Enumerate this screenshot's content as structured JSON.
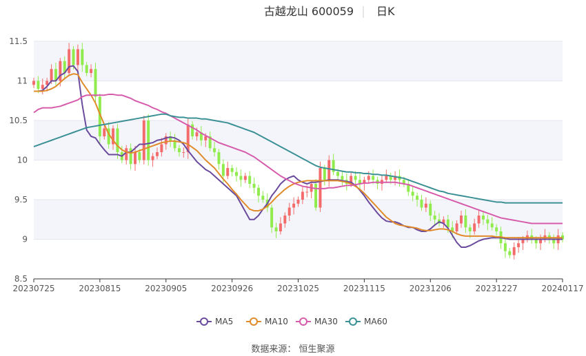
{
  "title": {
    "name": "古越龙山 600059",
    "period": "日K"
  },
  "source": "数据来源： 恒生聚源",
  "colors": {
    "up": "#f36b6b",
    "down": "#8fec4c",
    "grid": "#e3e6ef",
    "band": "#f4f5fa",
    "axis": "#555555"
  },
  "chart_data": {
    "type": "candlestick",
    "title": "古越龙山 600059",
    "ylim": [
      8.5,
      11.5
    ],
    "yticks": [
      "8.5",
      "9",
      "9.5",
      "10",
      "10.5",
      "11",
      "11.5"
    ],
    "xticks": [
      {
        "label": "20230725",
        "index": 0
      },
      {
        "label": "20230815",
        "index": 15
      },
      {
        "label": "20230905",
        "index": 30
      },
      {
        "label": "20230926",
        "index": 45
      },
      {
        "label": "20231025",
        "index": 60
      },
      {
        "label": "20231115",
        "index": 75
      },
      {
        "label": "20231206",
        "index": 90
      },
      {
        "label": "20231227",
        "index": 105
      },
      {
        "label": "20240117",
        "index": 120
      }
    ],
    "close": [
      11.0,
      10.9,
      10.95,
      11.0,
      11.15,
      11.0,
      11.25,
      11.1,
      11.4,
      11.2,
      11.4,
      11.2,
      11.1,
      11.15,
      10.8,
      10.3,
      10.4,
      10.2,
      10.4,
      10.1,
      10.0,
      10.15,
      9.95,
      10.1,
      10.0,
      10.5,
      10.0,
      10.05,
      10.1,
      10.2,
      10.3,
      10.25,
      10.15,
      10.1,
      10.1,
      10.45,
      10.3,
      10.35,
      10.25,
      10.3,
      10.15,
      10.1,
      9.95,
      9.8,
      9.9,
      9.85,
      9.8,
      9.75,
      9.8,
      9.7,
      9.65,
      9.55,
      9.5,
      9.4,
      9.15,
      9.1,
      9.2,
      9.3,
      9.4,
      9.45,
      9.5,
      9.6,
      9.6,
      9.7,
      9.4,
      9.9,
      9.75,
      10.0,
      9.85,
      9.8,
      9.75,
      9.7,
      9.8,
      9.75,
      9.7,
      9.75,
      9.8,
      9.75,
      9.7,
      9.75,
      9.8,
      9.75,
      9.8,
      9.75,
      9.7,
      9.6,
      9.55,
      9.5,
      9.4,
      9.45,
      9.3,
      9.25,
      9.2,
      9.25,
      9.15,
      9.1,
      9.2,
      9.3,
      9.15,
      9.1,
      9.2,
      9.3,
      9.25,
      9.2,
      9.15,
      9.1,
      8.95,
      8.85,
      8.8,
      8.9,
      8.95,
      9.0,
      9.05,
      9.0,
      8.95,
      9.0,
      9.05,
      9.0,
      8.95,
      9.05,
      9.0
    ],
    "series": [
      {
        "name": "MA5",
        "color": "#6a4a9c",
        "values": [
          10.87,
          10.87,
          10.88,
          10.93,
          11.0,
          11.0,
          11.07,
          11.1,
          11.18,
          11.19,
          11.12,
          10.7,
          10.38,
          10.3,
          10.28,
          10.2,
          10.13,
          10.07,
          10.07,
          10.07,
          10.05,
          10.1,
          10.1,
          10.15,
          10.2,
          10.2,
          10.21,
          10.22,
          10.25,
          10.26,
          10.28,
          10.29,
          10.28,
          10.25,
          10.2,
          10.12,
          10.05,
          9.98,
          9.93,
          9.88,
          9.85,
          9.8,
          9.75,
          9.7,
          9.65,
          9.6,
          9.55,
          9.45,
          9.35,
          9.25,
          9.25,
          9.3,
          9.38,
          9.45,
          9.55,
          9.62,
          9.7,
          9.75,
          9.78,
          9.8,
          9.75,
          9.72,
          9.7,
          9.72,
          9.72,
          9.73,
          9.74,
          9.75,
          9.75,
          9.75,
          9.74,
          9.73,
          9.72,
          9.68,
          9.62,
          9.55,
          9.47,
          9.4,
          9.33,
          9.27,
          9.23,
          9.22,
          9.22,
          9.2,
          9.17,
          9.15,
          9.15,
          9.12,
          9.1,
          9.1,
          9.13,
          9.18,
          9.22,
          9.2,
          9.14,
          9.05,
          8.96,
          8.9,
          8.9,
          8.92,
          8.95,
          8.98,
          9.0,
          9.01,
          9.02,
          9.02,
          9.02,
          9.01,
          9.0,
          9.0,
          9.0,
          9.0,
          9.0,
          9.0,
          9.0,
          9.0,
          9.0,
          9.0,
          9.0,
          9.0,
          9.0
        ]
      },
      {
        "name": "MA10",
        "color": "#e08a2a",
        "values": [
          10.87,
          10.87,
          10.87,
          10.88,
          10.9,
          10.93,
          10.98,
          11.03,
          11.07,
          11.09,
          11.08,
          10.98,
          10.9,
          10.82,
          10.72,
          10.58,
          10.45,
          10.33,
          10.25,
          10.18,
          10.13,
          10.1,
          10.09,
          10.1,
          10.12,
          10.14,
          10.16,
          10.18,
          10.2,
          10.22,
          10.23,
          10.24,
          10.24,
          10.23,
          10.22,
          10.2,
          10.16,
          10.12,
          10.06,
          10.0,
          9.95,
          9.9,
          9.83,
          9.76,
          9.7,
          9.63,
          9.57,
          9.5,
          9.44,
          9.38,
          9.36,
          9.36,
          9.38,
          9.42,
          9.47,
          9.53,
          9.58,
          9.63,
          9.67,
          9.7,
          9.72,
          9.73,
          9.74,
          9.74,
          9.74,
          9.74,
          9.74,
          9.74,
          9.74,
          9.74,
          9.73,
          9.72,
          9.7,
          9.67,
          9.63,
          9.58,
          9.52,
          9.46,
          9.4,
          9.34,
          9.28,
          9.24,
          9.2,
          9.18,
          9.17,
          9.16,
          9.15,
          9.14,
          9.12,
          9.11,
          9.11,
          9.12,
          9.13,
          9.13,
          9.12,
          9.1,
          9.07,
          9.05,
          9.04,
          9.04,
          9.04,
          9.04,
          9.04,
          9.04,
          9.04,
          9.03,
          9.03,
          9.02,
          9.02,
          9.02,
          9.02,
          9.02,
          9.02,
          9.02,
          9.02,
          9.02,
          9.02,
          9.02,
          9.02,
          9.02,
          9.02
        ]
      },
      {
        "name": "MA30",
        "color": "#d65cab",
        "values": [
          10.6,
          10.64,
          10.66,
          10.66,
          10.66,
          10.67,
          10.68,
          10.7,
          10.72,
          10.74,
          10.76,
          10.8,
          10.82,
          10.82,
          10.82,
          10.82,
          10.82,
          10.83,
          10.83,
          10.82,
          10.82,
          10.8,
          10.78,
          10.75,
          10.73,
          10.71,
          10.69,
          10.66,
          10.64,
          10.61,
          10.59,
          10.56,
          10.53,
          10.5,
          10.47,
          10.44,
          10.41,
          10.38,
          10.34,
          10.31,
          10.28,
          10.25,
          10.22,
          10.2,
          10.18,
          10.16,
          10.14,
          10.12,
          10.1,
          10.07,
          10.04,
          10.0,
          9.96,
          9.92,
          9.88,
          9.84,
          9.8,
          9.77,
          9.74,
          9.71,
          9.69,
          9.67,
          9.66,
          9.65,
          9.64,
          9.64,
          9.64,
          9.65,
          9.65,
          9.66,
          9.67,
          9.68,
          9.68,
          9.69,
          9.7,
          9.71,
          9.71,
          9.72,
          9.72,
          9.72,
          9.72,
          9.72,
          9.72,
          9.71,
          9.7,
          9.69,
          9.67,
          9.65,
          9.63,
          9.61,
          9.59,
          9.57,
          9.55,
          9.53,
          9.51,
          9.49,
          9.47,
          9.45,
          9.43,
          9.41,
          9.39,
          9.37,
          9.35,
          9.33,
          9.31,
          9.29,
          9.27,
          9.26,
          9.25,
          9.24,
          9.23,
          9.22,
          9.21,
          9.2,
          9.2,
          9.2,
          9.2,
          9.2,
          9.2,
          9.2,
          9.2
        ]
      },
      {
        "name": "MA60",
        "color": "#3a9094",
        "values": [
          10.17,
          10.19,
          10.21,
          10.23,
          10.25,
          10.27,
          10.29,
          10.31,
          10.33,
          10.35,
          10.37,
          10.39,
          10.41,
          10.42,
          10.43,
          10.44,
          10.45,
          10.46,
          10.47,
          10.48,
          10.49,
          10.5,
          10.51,
          10.52,
          10.53,
          10.54,
          10.55,
          10.56,
          10.57,
          10.58,
          10.58,
          10.56,
          10.55,
          10.54,
          10.54,
          10.53,
          10.53,
          10.53,
          10.52,
          10.52,
          10.51,
          10.5,
          10.49,
          10.48,
          10.47,
          10.45,
          10.43,
          10.41,
          10.39,
          10.37,
          10.35,
          10.32,
          10.29,
          10.26,
          10.23,
          10.2,
          10.17,
          10.14,
          10.11,
          10.08,
          10.05,
          10.02,
          9.99,
          9.96,
          9.93,
          9.91,
          9.9,
          9.89,
          9.88,
          9.87,
          9.86,
          9.85,
          9.85,
          9.84,
          9.84,
          9.83,
          9.83,
          9.82,
          9.82,
          9.81,
          9.81,
          9.8,
          9.79,
          9.78,
          9.77,
          9.75,
          9.73,
          9.71,
          9.69,
          9.67,
          9.65,
          9.63,
          9.61,
          9.6,
          9.58,
          9.57,
          9.56,
          9.55,
          9.54,
          9.53,
          9.52,
          9.51,
          9.5,
          9.49,
          9.48,
          9.47,
          9.47,
          9.46,
          9.46,
          9.46,
          9.46,
          9.46,
          9.46,
          9.46,
          9.46,
          9.46,
          9.46,
          9.46,
          9.46,
          9.46,
          9.46
        ]
      }
    ],
    "legend_position": "bottom-center",
    "grid": true
  }
}
